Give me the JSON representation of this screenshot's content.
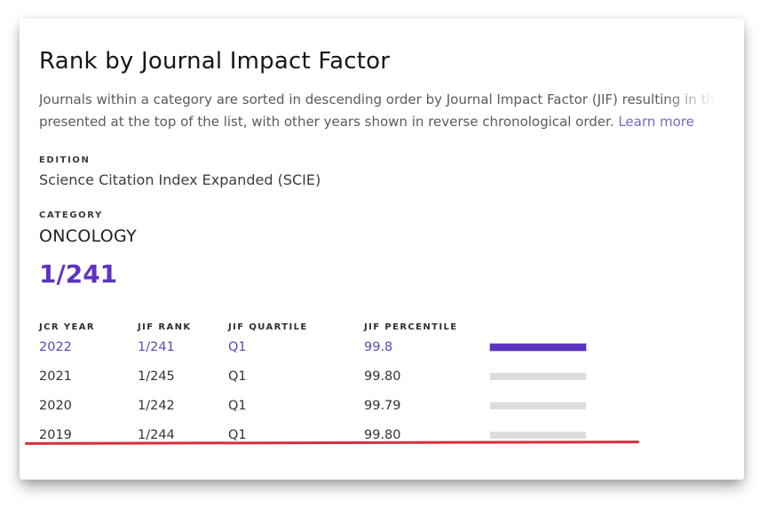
{
  "page": {
    "title": "Rank by Journal Impact Factor",
    "description_line1": "Journals within a category are sorted in descending order by Journal Impact Factor (JIF) resulting in the Category Ranking",
    "description_line2": "presented at the top of the list, with other years shown in reverse chronological order.",
    "learn_more_label": "Learn more"
  },
  "edition": {
    "label": "EDITION",
    "value": "Science Citation Index Expanded (SCIE)"
  },
  "category": {
    "label": "CATEGORY",
    "value": "ONCOLOGY",
    "current_rank": "1/241"
  },
  "table": {
    "columns": [
      "JCR YEAR",
      "JIF RANK",
      "JIF QUARTILE",
      "JIF PERCENTILE"
    ],
    "rows": [
      {
        "year": "2022",
        "rank": "1/241",
        "quartile": "Q1",
        "percentile": "99.8",
        "bar_pct": 99.8,
        "highlighted": true
      },
      {
        "year": "2021",
        "rank": "1/245",
        "quartile": "Q1",
        "percentile": "99.80",
        "bar_pct": 99.8,
        "highlighted": false
      },
      {
        "year": "2020",
        "rank": "1/242",
        "quartile": "Q1",
        "percentile": "99.79",
        "bar_pct": 99.79,
        "highlighted": false
      },
      {
        "year": "2019",
        "rank": "1/244",
        "quartile": "Q1",
        "percentile": "99.80",
        "bar_pct": 99.8,
        "highlighted": false
      }
    ]
  },
  "colors": {
    "accent_purple": "#5e33bf",
    "row_highlight_purple": "#5c49c4",
    "link_purple": "#7668c9",
    "bar_gray": "#dcdcdc",
    "annotation_red": "#d62f3f"
  }
}
